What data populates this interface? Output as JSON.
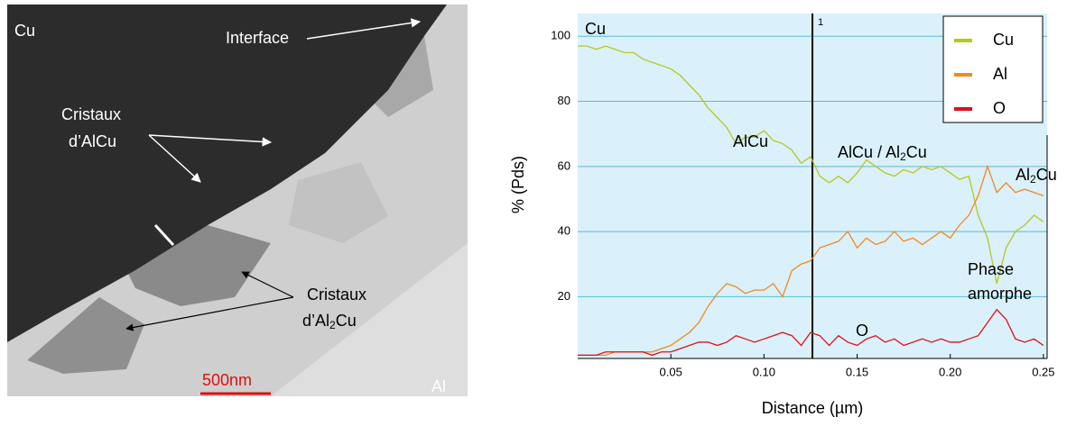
{
  "image": {
    "labels": {
      "cu": "Cu",
      "interface": "Interface",
      "alcu_line1": "Cristaux",
      "alcu_line2": "d’AlCu",
      "al2cu_line1": "Cristaux",
      "al2cu_line2": [
        {
          "text": "d’Al"
        },
        {
          "text": "2",
          "sub": true
        },
        {
          "text": "Cu"
        }
      ],
      "scale": "500nm",
      "al": "Al"
    }
  },
  "chart_data": {
    "type": "line",
    "xlabel": "Distance (µm)",
    "ylabel": "% (Pds)",
    "x": [
      0,
      0.005,
      0.01,
      0.015,
      0.02,
      0.025,
      0.03,
      0.035,
      0.04,
      0.045,
      0.05,
      0.055,
      0.06,
      0.065,
      0.07,
      0.075,
      0.08,
      0.085,
      0.09,
      0.095,
      0.1,
      0.105,
      0.11,
      0.115,
      0.12,
      0.125,
      0.13,
      0.135,
      0.14,
      0.145,
      0.15,
      0.155,
      0.16,
      0.165,
      0.17,
      0.175,
      0.18,
      0.185,
      0.19,
      0.195,
      0.2,
      0.205,
      0.21,
      0.215,
      0.22,
      0.225,
      0.23,
      0.235,
      0.24,
      0.245,
      0.25
    ],
    "series": [
      {
        "name": "Cu",
        "color": "#b5c91e",
        "values": [
          97,
          97,
          96,
          97,
          96,
          95,
          95,
          93,
          92,
          91,
          90,
          88,
          85,
          82,
          78,
          75,
          72,
          67,
          69,
          69,
          71,
          68,
          67,
          65,
          61,
          63,
          57,
          55,
          57,
          55,
          58,
          62,
          60,
          58,
          57,
          59,
          58,
          60,
          59,
          60,
          58,
          56,
          57,
          45,
          38,
          24,
          35,
          40,
          42,
          45,
          43
        ]
      },
      {
        "name": "Al",
        "color": "#f08a24",
        "values": [
          2,
          2,
          2,
          2,
          3,
          3,
          3,
          3,
          3,
          4,
          5,
          7,
          9,
          12,
          17,
          21,
          24,
          23,
          21,
          22,
          22,
          24,
          20,
          28,
          30,
          31,
          35,
          36,
          37,
          40,
          35,
          38,
          36,
          37,
          40,
          37,
          38,
          36,
          38,
          40,
          38,
          42,
          45,
          51,
          60,
          52,
          55,
          52,
          53,
          52,
          51
        ]
      },
      {
        "name": "O",
        "color": "#e0101a",
        "values": [
          2,
          2,
          2,
          3,
          3,
          3,
          3,
          3,
          2,
          3,
          3,
          4,
          5,
          6,
          6,
          5,
          6,
          8,
          7,
          6,
          7,
          8,
          9,
          8,
          5,
          9,
          8,
          5,
          8,
          6,
          5,
          7,
          8,
          6,
          7,
          5,
          6,
          7,
          6,
          7,
          6,
          6,
          7,
          8,
          12,
          16,
          13,
          7,
          6,
          7,
          5
        ]
      }
    ],
    "xlim": [
      0,
      0.252
    ],
    "ylim": [
      1,
      107
    ],
    "xticks": [
      0.05,
      {
        "value": 0.1,
        "label": "0.10"
      },
      0.15,
      {
        "value": 0.2,
        "label": "0.20"
      },
      0.25
    ],
    "yticks": [
      20,
      40,
      60,
      80,
      100
    ],
    "grid": true,
    "legend": "upper right",
    "vline": {
      "value": 0.126,
      "label": "1"
    },
    "annotations": [
      {
        "parts": [
          {
            "text": "Cu"
          }
        ]
      },
      {
        "parts": [
          {
            "text": "AlCu"
          }
        ]
      },
      {
        "parts": [
          {
            "text": "AlCu / Al"
          },
          {
            "text": "2",
            "sub": true
          },
          {
            "text": "Cu"
          }
        ]
      },
      {
        "parts": [
          {
            "text": "Al"
          },
          {
            "text": "2",
            "sub": true
          },
          {
            "text": "Cu"
          }
        ]
      },
      {
        "parts": [
          {
            "text": "Phase"
          }
        ]
      },
      {
        "parts": [
          {
            "text": "amorphe"
          }
        ]
      },
      {
        "parts": [
          {
            "text": "O"
          }
        ]
      }
    ]
  }
}
